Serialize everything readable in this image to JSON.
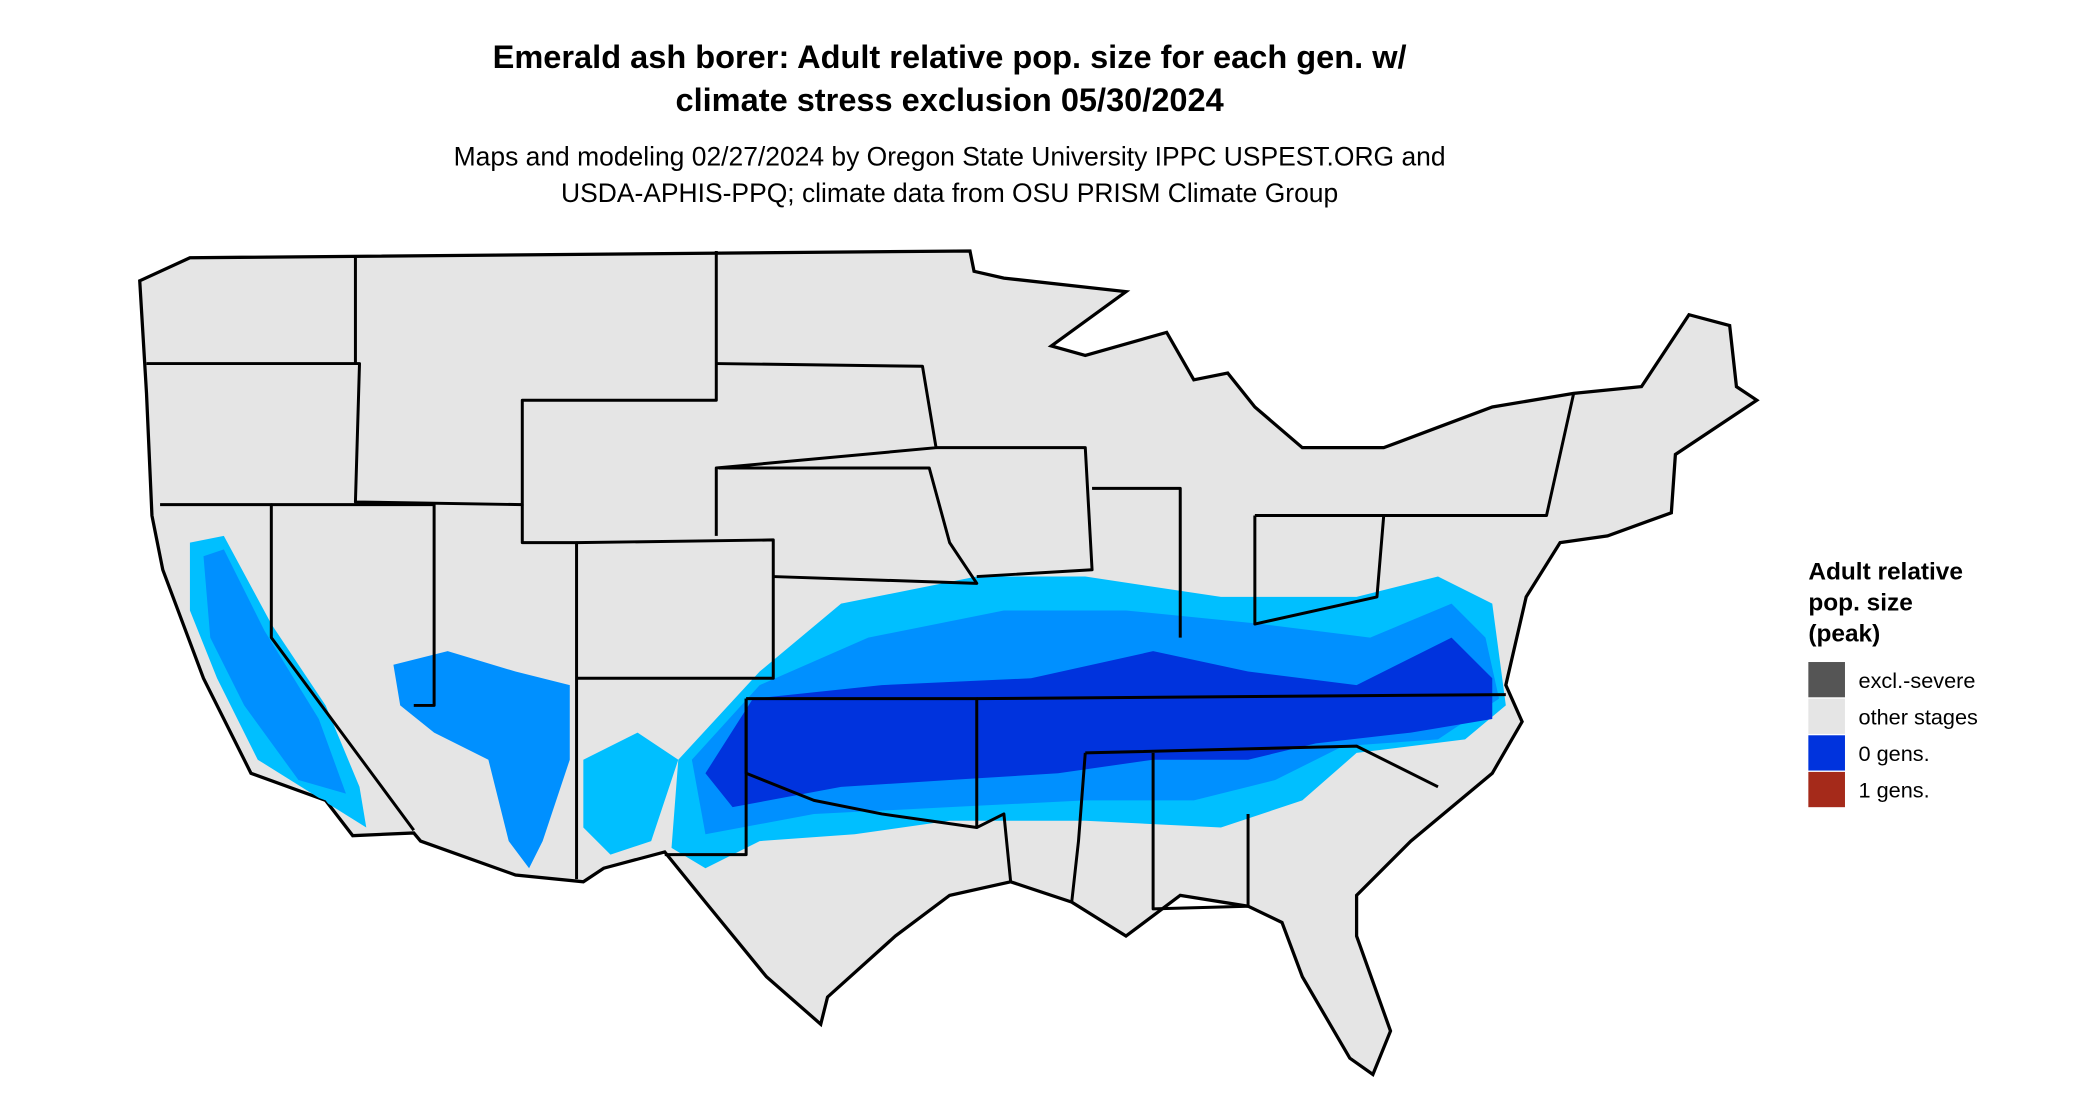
{
  "title": [
    "Emerald ash borer: Adult relative pop. size for each gen. w/",
    "climate stress exclusion 05/30/2024"
  ],
  "subtitle": [
    "Maps and modeling 02/27/2024 by Oregon State University IPPC USPEST.ORG and",
    "USDA-APHIS-PPQ; climate data from OSU PRISM Climate Group"
  ],
  "legend": {
    "title": [
      "Adult relative",
      "pop. size",
      "(peak)"
    ],
    "items": [
      {
        "label": "excl.-severe",
        "color": "#555555"
      },
      {
        "label": "other stages",
        "color": "#e5e5e5"
      },
      {
        "label": "0 gens.",
        "color": "#0033dd"
      },
      {
        "label": "1 gens.",
        "color": "#a52a1a"
      }
    ]
  }
}
